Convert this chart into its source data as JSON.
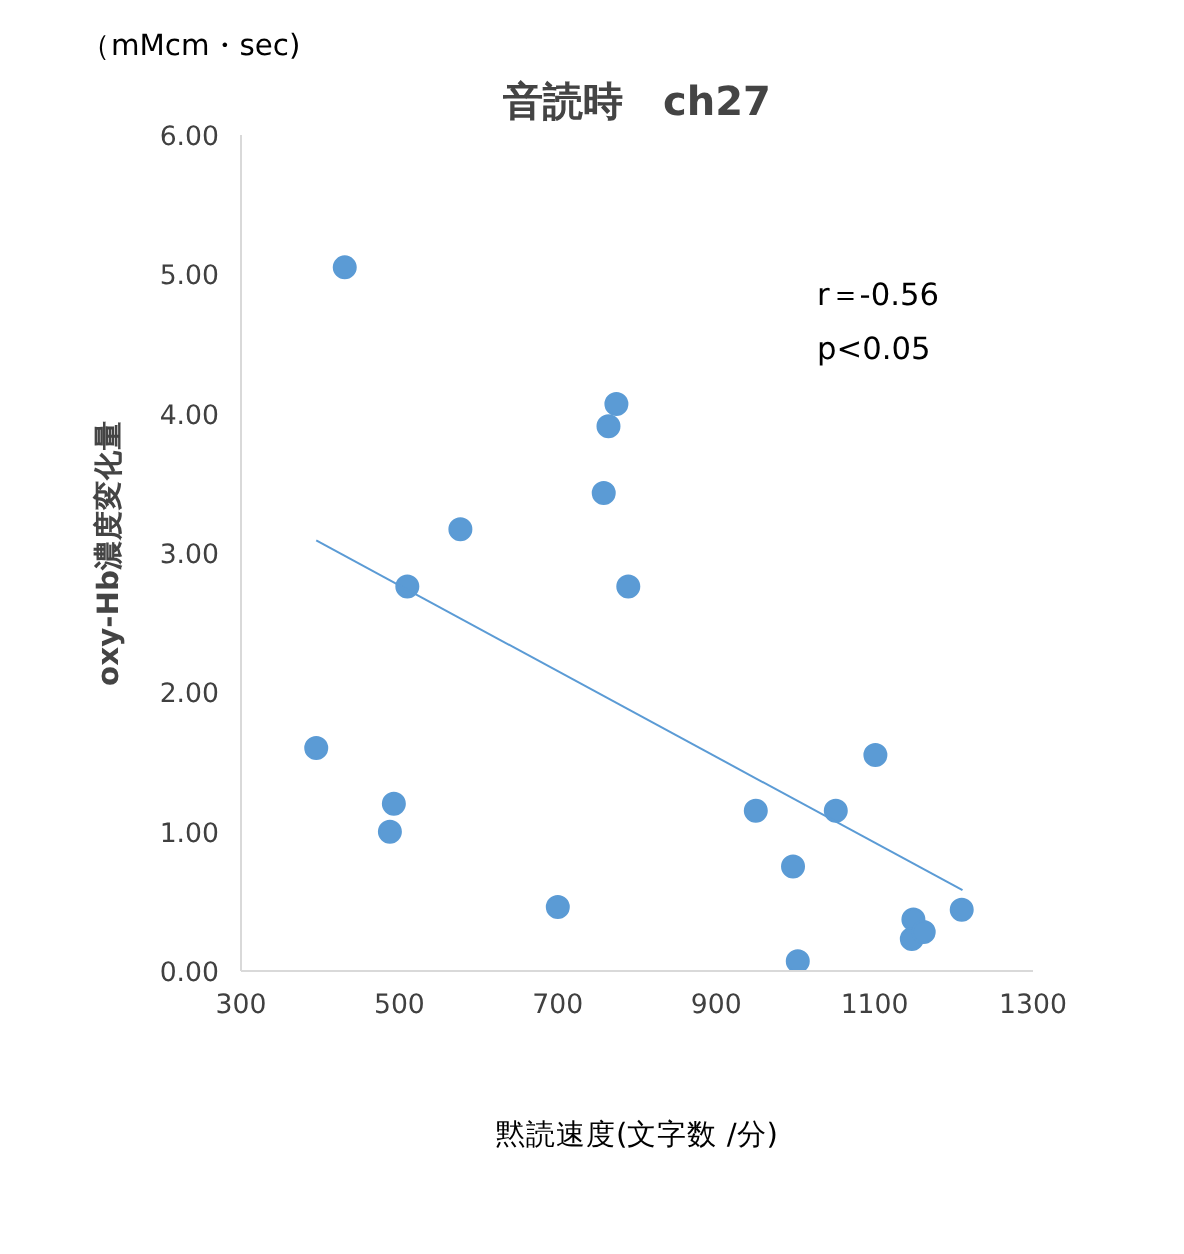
{
  "chart_data": {
    "type": "scatter",
    "title": "音読時　ch27",
    "ylabel": "oxy-Hb濃度変化量",
    "annotations": [
      "（mMcm・sec)",
      "r＝-0.56",
      "p<0.05",
      "黙読速度(文字数 /分)"
    ],
    "x": [
      431,
      395,
      493,
      488,
      510,
      577,
      700,
      758,
      764,
      774,
      789,
      950,
      997,
      1003,
      1051,
      1101,
      1149,
      1147,
      1162,
      1210
    ],
    "series": [
      {
        "color": "#5b9bd5",
        "values": [
          5.05,
          1.6,
          1.2,
          1.0,
          2.76,
          3.17,
          0.46,
          3.43,
          3.91,
          4.07,
          2.76,
          1.15,
          0.75,
          0.07,
          1.15,
          1.55,
          0.37,
          0.23,
          0.28,
          0.44
        ]
      },
      {
        "type": "line",
        "marker": "none",
        "color": "#5b9bd5",
        "x": [
          395,
          1211
        ],
        "values": [
          3.09,
          0.58
        ]
      }
    ],
    "xlim": [
      300,
      1300
    ],
    "xticks": [
      300,
      500,
      700,
      900,
      1100,
      1300
    ],
    "ylim": [
      0,
      6
    ],
    "yticks": [
      {
        "value": 0,
        "label": "0.00"
      },
      {
        "value": 1,
        "label": "1.00"
      },
      {
        "value": 2,
        "label": "2.00"
      },
      {
        "value": 3,
        "label": "3.00"
      },
      {
        "value": 4,
        "label": "4.00"
      },
      {
        "value": 5,
        "label": "5.00"
      },
      {
        "value": 6,
        "label": "6.00"
      }
    ],
    "grid": false,
    "marker": "circle"
  }
}
